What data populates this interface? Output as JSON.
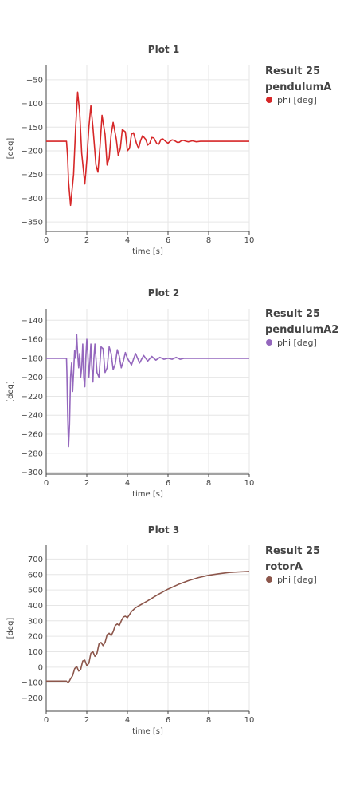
{
  "chart_data": [
    {
      "type": "line",
      "title": "Plot 1",
      "xlabel": "time [s]",
      "ylabel": "[deg]",
      "xlim": [
        0,
        10
      ],
      "ylim": [
        -370,
        -20
      ],
      "xticks": [
        0,
        2,
        4,
        6,
        8,
        10
      ],
      "yticks": [
        -50,
        -100,
        -150,
        -200,
        -250,
        -300,
        -350
      ],
      "grid": true,
      "legend": {
        "title_line1": "Result 25",
        "title_line2": "pendulumA",
        "placement": "right"
      },
      "series": [
        {
          "name": "phi [deg]",
          "color": "#d62728",
          "x": [
            0,
            0.2,
            0.4,
            0.6,
            0.8,
            1.0,
            1.05,
            1.1,
            1.2,
            1.35,
            1.45,
            1.55,
            1.65,
            1.75,
            1.9,
            2.0,
            2.1,
            2.2,
            2.3,
            2.45,
            2.55,
            2.65,
            2.75,
            2.9,
            3.0,
            3.1,
            3.2,
            3.3,
            3.45,
            3.55,
            3.65,
            3.75,
            3.9,
            4.0,
            4.1,
            4.2,
            4.3,
            4.45,
            4.55,
            4.65,
            4.75,
            4.9,
            5.0,
            5.1,
            5.2,
            5.3,
            5.45,
            5.55,
            5.65,
            5.75,
            5.9,
            6.0,
            6.1,
            6.2,
            6.3,
            6.45,
            6.55,
            6.65,
            6.75,
            6.9,
            7.0,
            7.2,
            7.4,
            7.6,
            7.8,
            8.0,
            8.5,
            9.0,
            9.5,
            10.0
          ],
          "y": [
            -180,
            -180,
            -180,
            -180,
            -180,
            -180,
            -210,
            -265,
            -315,
            -250,
            -150,
            -76,
            -120,
            -205,
            -270,
            -220,
            -150,
            -105,
            -150,
            -230,
            -245,
            -190,
            -125,
            -165,
            -230,
            -215,
            -165,
            -140,
            -175,
            -210,
            -195,
            -155,
            -160,
            -200,
            -195,
            -165,
            -162,
            -185,
            -195,
            -178,
            -168,
            -176,
            -188,
            -184,
            -172,
            -173,
            -185,
            -186,
            -176,
            -175,
            -181,
            -184,
            -180,
            -177,
            -178,
            -182,
            -182,
            -179,
            -178,
            -180,
            -181,
            -179,
            -181,
            -180,
            -180,
            -180,
            -180,
            -180,
            -180,
            -180
          ]
        }
      ]
    },
    {
      "type": "line",
      "title": "Plot 2",
      "xlabel": "time [s]",
      "ylabel": "[deg]",
      "xlim": [
        0,
        10
      ],
      "ylim": [
        -302,
        -128
      ],
      "xticks": [
        0,
        2,
        4,
        6,
        8,
        10
      ],
      "yticks": [
        -140,
        -160,
        -180,
        -200,
        -220,
        -240,
        -260,
        -280,
        -300
      ],
      "grid": true,
      "legend": {
        "title_line1": "Result 25",
        "title_line2": "pendulumA2",
        "placement": "right"
      },
      "series": [
        {
          "name": "phi [deg]",
          "color": "#9467bd",
          "x": [
            0,
            0.2,
            0.4,
            0.6,
            0.8,
            1.0,
            1.02,
            1.06,
            1.1,
            1.15,
            1.2,
            1.25,
            1.3,
            1.35,
            1.4,
            1.45,
            1.5,
            1.55,
            1.6,
            1.65,
            1.7,
            1.75,
            1.8,
            1.85,
            1.9,
            1.95,
            2.0,
            2.05,
            2.1,
            2.15,
            2.2,
            2.25,
            2.3,
            2.35,
            2.4,
            2.5,
            2.6,
            2.7,
            2.8,
            2.9,
            3.0,
            3.1,
            3.2,
            3.3,
            3.4,
            3.5,
            3.6,
            3.7,
            3.8,
            3.9,
            4.0,
            4.2,
            4.4,
            4.6,
            4.8,
            5.0,
            5.2,
            5.4,
            5.6,
            5.8,
            6.0,
            6.2,
            6.4,
            6.6,
            6.8,
            7.0,
            7.5,
            8.0,
            8.5,
            9.0,
            9.5,
            10.0
          ],
          "y": [
            -180,
            -180,
            -180,
            -180,
            -180,
            -180,
            -195,
            -240,
            -273,
            -250,
            -200,
            -185,
            -215,
            -195,
            -172,
            -180,
            -155,
            -175,
            -190,
            -175,
            -200,
            -190,
            -165,
            -200,
            -210,
            -180,
            -160,
            -175,
            -200,
            -185,
            -165,
            -190,
            -205,
            -180,
            -165,
            -195,
            -200,
            -168,
            -170,
            -195,
            -190,
            -168,
            -175,
            -192,
            -186,
            -171,
            -178,
            -190,
            -183,
            -174,
            -180,
            -187,
            -175,
            -185,
            -177,
            -183,
            -178,
            -182,
            -179,
            -181,
            -180,
            -181,
            -179,
            -181,
            -180,
            -180,
            -180,
            -180,
            -180,
            -180,
            -180,
            -180
          ]
        }
      ]
    },
    {
      "type": "line",
      "title": "Plot 3",
      "xlabel": "time [s]",
      "ylabel": "[deg]",
      "xlim": [
        0,
        10
      ],
      "ylim": [
        -285,
        790
      ],
      "xticks": [
        0,
        2,
        4,
        6,
        8,
        10
      ],
      "yticks": [
        700,
        600,
        500,
        400,
        300,
        200,
        100,
        0,
        -100,
        -200
      ],
      "grid": true,
      "legend": {
        "title_line1": "Result 25",
        "title_line2": "rotorA",
        "placement": "right"
      },
      "series": [
        {
          "name": "phi [deg]",
          "color": "#8c564b",
          "x": [
            0,
            0.5,
            1.0,
            1.05,
            1.1,
            1.2,
            1.3,
            1.4,
            1.5,
            1.6,
            1.7,
            1.8,
            1.9,
            2.0,
            2.1,
            2.2,
            2.3,
            2.4,
            2.5,
            2.6,
            2.7,
            2.8,
            2.9,
            3.0,
            3.1,
            3.2,
            3.3,
            3.4,
            3.5,
            3.6,
            3.7,
            3.8,
            3.9,
            4.0,
            4.2,
            4.4,
            4.6,
            4.8,
            5.0,
            5.5,
            6.0,
            6.5,
            7.0,
            7.5,
            8.0,
            8.5,
            9.0,
            9.5,
            10.0
          ],
          "y": [
            -90,
            -90,
            -90,
            -100,
            -100,
            -75,
            -55,
            -10,
            5,
            -25,
            -15,
            40,
            45,
            10,
            25,
            90,
            100,
            70,
            90,
            150,
            160,
            140,
            160,
            210,
            220,
            205,
            230,
            270,
            280,
            270,
            300,
            325,
            330,
            320,
            360,
            385,
            400,
            415,
            430,
            470,
            505,
            535,
            560,
            580,
            595,
            605,
            613,
            617,
            620
          ]
        }
      ]
    }
  ]
}
